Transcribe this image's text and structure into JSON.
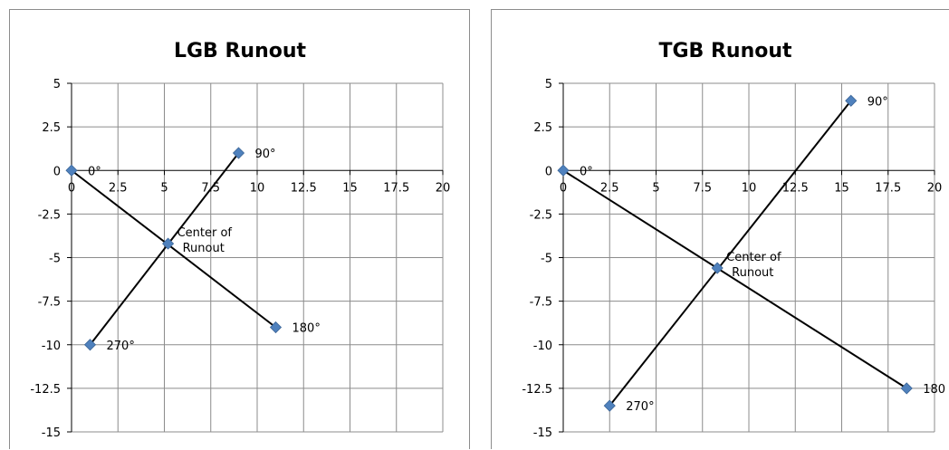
{
  "chart_data": [
    {
      "type": "scatter",
      "title": "LGB Runout",
      "xlabel": "",
      "ylabel": "",
      "xlim": [
        0,
        20
      ],
      "ylim": [
        -15,
        5
      ],
      "xticks": [
        "0",
        "2.5",
        "5",
        "7.5",
        "10",
        "12.5",
        "15",
        "17.5",
        "20"
      ],
      "yticks": [
        "5",
        "2.5",
        "0",
        "-2.5",
        "-5",
        "-7.5",
        "-10",
        "-12.5",
        "-15"
      ],
      "grid": true,
      "marker_color": "#4f81bd",
      "line_color": "#000000",
      "points": [
        {
          "label": "0°",
          "x": 0,
          "y": 0
        },
        {
          "label": "90°",
          "x": 9,
          "y": 1
        },
        {
          "label": "180°",
          "x": 11,
          "y": -9
        },
        {
          "label": "270°",
          "x": 1,
          "y": -10
        },
        {
          "label": "Center of Runout",
          "x": 5.2,
          "y": -4.2
        }
      ],
      "lines": [
        [
          "0°",
          "180°"
        ],
        [
          "270°",
          "90°"
        ]
      ]
    },
    {
      "type": "scatter",
      "title": "TGB Runout",
      "xlabel": "",
      "ylabel": "",
      "xlim": [
        0,
        20
      ],
      "ylim": [
        -15,
        5
      ],
      "xticks": [
        "0",
        "2.5",
        "5",
        "7.5",
        "10",
        "12.5",
        "15",
        "17.5",
        "20"
      ],
      "yticks": [
        "5",
        "2.5",
        "0",
        "-2.5",
        "-5",
        "-7.5",
        "-10",
        "-12.5",
        "-15"
      ],
      "grid": true,
      "marker_color": "#4f81bd",
      "line_color": "#000000",
      "points": [
        {
          "label": "0°",
          "x": 0,
          "y": 0
        },
        {
          "label": "90°",
          "x": 15.5,
          "y": 4
        },
        {
          "label": "180",
          "x": 18.5,
          "y": -12.5
        },
        {
          "label": "270°",
          "x": 2.5,
          "y": -13.5
        },
        {
          "label": "Center of Runout",
          "x": 8.3,
          "y": -5.6
        }
      ],
      "lines": [
        [
          "0°",
          "180"
        ],
        [
          "270°",
          "90°"
        ]
      ]
    }
  ]
}
